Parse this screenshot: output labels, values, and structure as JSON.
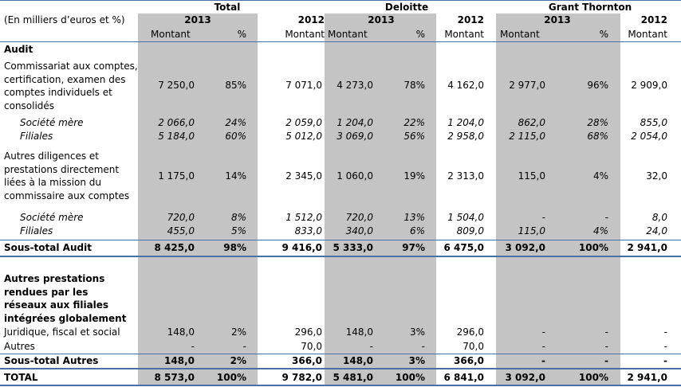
{
  "header": {
    "unit_note": "(En milliers d’euros et %)",
    "groups": [
      "Total",
      "Deloitte",
      "Grant Thornton"
    ],
    "years": {
      "y2013": "2013",
      "y2012": "2012"
    },
    "subheads": {
      "amount": "Montant",
      "pct": "%"
    }
  },
  "sections": {
    "audit": "Audit",
    "other": "Autres prestations rendues par les réseaux aux filiales intégrées globalement"
  },
  "rows": [
    {
      "label": "Commissariat aux comptes, certification, examen des comptes individuels et consolidés",
      "style": "normal",
      "values": [
        "7 250,0",
        "85%",
        "7 071,0",
        "4 273,0",
        "78%",
        "4 162,0",
        "2 977,0",
        "96%",
        "2 909,0"
      ]
    },
    {
      "label": "Société mère",
      "style": "sub",
      "values": [
        "2 066,0",
        "24%",
        "2 059,0",
        "1 204,0",
        "22%",
        "1 204,0",
        "862,0",
        "28%",
        "855,0"
      ]
    },
    {
      "label": "Filiales",
      "style": "sub",
      "values": [
        "5 184,0",
        "60%",
        "5 012,0",
        "3 069,0",
        "56%",
        "2 958,0",
        "2 115,0",
        "68%",
        "2 054,0"
      ]
    },
    {
      "label": "Autres diligences et prestations directement liées à la mission du commissaire aux comptes",
      "style": "normal",
      "values": [
        "1 175,0",
        "14%",
        "2 345,0",
        "1 060,0",
        "19%",
        "2 313,0",
        "115,0",
        "4%",
        "32,0"
      ]
    },
    {
      "label": "Société mère",
      "style": "sub",
      "values": [
        "720,0",
        "8%",
        "1 512,0",
        "720,0",
        "13%",
        "1 504,0",
        "-",
        "-",
        "8,0"
      ]
    },
    {
      "label": "Filiales",
      "style": "sub",
      "values": [
        "455,0",
        "5%",
        "833,0",
        "340,0",
        "6%",
        "809,0",
        "115,0",
        "4%",
        "24,0"
      ]
    },
    {
      "label": "Sous-total Audit",
      "style": "bold",
      "values": [
        "8 425,0",
        "98%",
        "9 416,0",
        "5 333,0",
        "97%",
        "6 475,0",
        "3 092,0",
        "100%",
        "2 941,0"
      ]
    },
    {
      "label": "Juridique, fiscal et social",
      "style": "normal",
      "values": [
        "148,0",
        "2%",
        "296,0",
        "148,0",
        "3%",
        "296,0",
        "-",
        "-",
        "-"
      ]
    },
    {
      "label": "Autres",
      "style": "normal",
      "values": [
        "-",
        "-",
        "70,0",
        "-",
        "-",
        "70,0",
        "-",
        "-",
        "-"
      ]
    },
    {
      "label": "Sous-total Autres",
      "style": "bold",
      "values": [
        "148,0",
        "2%",
        "366,0",
        "148,0",
        "3%",
        "366,0",
        "-",
        "-",
        "-"
      ]
    },
    {
      "label": "TOTAL",
      "style": "bold",
      "values": [
        "8 573,0",
        "100%",
        "9 782,0",
        "5 481,0",
        "100%",
        "6 841,0",
        "3 092,0",
        "100%",
        "2 941,0"
      ]
    }
  ],
  "colors": {
    "shade": "#c4c4c4",
    "rule": "#4a6fa5"
  }
}
